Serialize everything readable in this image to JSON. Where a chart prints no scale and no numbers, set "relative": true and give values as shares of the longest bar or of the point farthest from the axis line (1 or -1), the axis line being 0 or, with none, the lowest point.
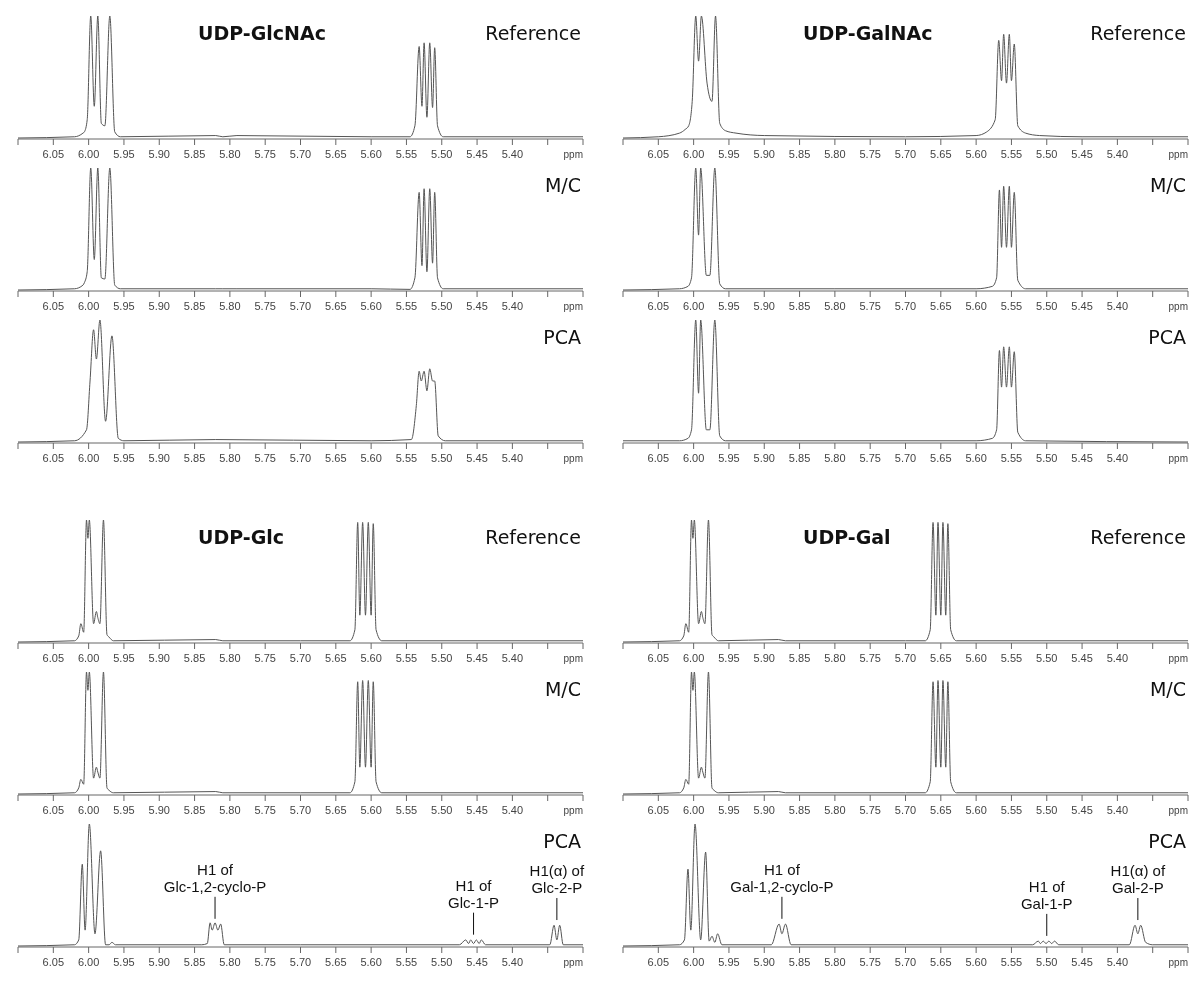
{
  "chart_data": [
    {
      "type": "line",
      "subtitle": "UDP-GlcNAc",
      "title": "Reference",
      "xlabel": "ppm",
      "relative": true,
      "color": "#555555",
      "xlim": [
        6.1,
        5.3
      ],
      "xticks": [
        {
          "value": 6.1,
          "label": null
        },
        6.05,
        "6.00",
        5.95,
        "5.90",
        5.85,
        "5.80",
        5.75,
        "5.70",
        5.65,
        "5.60",
        5.55,
        "5.50",
        5.45,
        "5.40",
        {
          "value": 5.35,
          "label": null
        },
        {
          "value": 5.3,
          "label": null
        }
      ],
      "x": [
        6.1,
        6.02,
        6.008,
        6.006,
        6.002,
        5.997,
        5.992,
        5.987,
        5.982,
        5.977,
        5.97,
        5.963,
        5.955,
        5.82,
        5.81,
        5.79,
        5.6,
        5.545,
        5.538,
        5.532,
        5.528,
        5.525,
        5.521,
        5.517,
        5.513,
        5.51,
        5.506,
        5.498,
        5.3
      ],
      "values": [
        0,
        0.01,
        0.04,
        0.05,
        0.15,
        1,
        0.26,
        1,
        0.12,
        0.1,
        1,
        0.05,
        0.01,
        0.02,
        0.01,
        0.02,
        0.01,
        0.01,
        0.1,
        0.75,
        0.26,
        0.78,
        0.17,
        0.78,
        0.25,
        0.74,
        0.1,
        0.01,
        0.01
      ]
    },
    {
      "type": "line",
      "title": "M/C",
      "xlabel": "ppm",
      "relative": true,
      "color": "#555555",
      "xlim": [
        6.1,
        5.3
      ],
      "xticks": [
        {
          "value": 6.1,
          "label": null
        },
        6.05,
        "6.00",
        5.95,
        "5.90",
        5.85,
        "5.80",
        5.75,
        "5.70",
        5.65,
        "5.60",
        5.55,
        "5.50",
        5.45,
        "5.40",
        {
          "value": 5.35,
          "label": null
        },
        {
          "value": 5.3,
          "label": null
        }
      ],
      "x": [
        6.1,
        6.02,
        6.008,
        6.006,
        6.002,
        5.997,
        5.992,
        5.987,
        5.982,
        5.977,
        5.97,
        5.963,
        5.955,
        5.82,
        5.81,
        5.79,
        5.6,
        5.545,
        5.538,
        5.532,
        5.528,
        5.525,
        5.521,
        5.517,
        5.513,
        5.51,
        5.506,
        5.498,
        5.3
      ],
      "values": [
        0,
        0.01,
        0.04,
        0.06,
        0.15,
        1,
        0.25,
        1,
        0.1,
        0.09,
        1,
        0.04,
        0.01,
        0.01,
        0.01,
        0.01,
        0.01,
        0.005,
        0.1,
        0.8,
        0.2,
        0.83,
        0.15,
        0.83,
        0.22,
        0.8,
        0.1,
        0.01,
        0.01
      ]
    },
    {
      "type": "line",
      "title": "PCA",
      "xlabel": "ppm",
      "relative": true,
      "color": "#555555",
      "xlim": [
        6.1,
        5.3
      ],
      "xticks": [
        {
          "value": 6.1,
          "label": null
        },
        6.05,
        "6.00",
        5.95,
        "5.90",
        5.85,
        "5.80",
        5.75,
        "5.70",
        5.65,
        "5.60",
        5.55,
        "5.50",
        5.45,
        "5.40",
        {
          "value": 5.35,
          "label": null
        },
        {
          "value": 5.3,
          "label": null
        }
      ],
      "x": [
        6.1,
        6.02,
        6.003,
        5.998,
        5.993,
        5.989,
        5.984,
        5.976,
        5.967,
        5.958,
        5.95,
        5.82,
        5.6,
        5.543,
        5.536,
        5.532,
        5.529,
        5.525,
        5.521,
        5.517,
        5.513,
        5.51,
        5.505,
        5.495,
        5.3
      ],
      "values": [
        0,
        0.01,
        0.1,
        0.5,
        0.92,
        0.68,
        1,
        0.17,
        0.87,
        0.03,
        0.01,
        0.02,
        0.01,
        0.02,
        0.3,
        0.58,
        0.5,
        0.58,
        0.42,
        0.6,
        0.5,
        0.5,
        0.05,
        0.01,
        0.01
      ]
    },
    {
      "type": "line",
      "subtitle": "UDP-GalNAc",
      "title": "Reference",
      "xlabel": "ppm",
      "relative": true,
      "color": "#555555",
      "xlim": [
        6.1,
        5.3
      ],
      "xticks": [
        {
          "value": 6.1,
          "label": null
        },
        6.05,
        "6.00",
        5.95,
        "5.90",
        5.85,
        "5.80",
        5.75,
        "5.70",
        5.65,
        "5.60",
        5.55,
        "5.50",
        5.45,
        "5.40",
        {
          "value": 5.35,
          "label": null
        },
        {
          "value": 5.3,
          "label": null
        }
      ],
      "x": [
        6.1,
        6.05,
        6.02,
        6.012,
        6.007,
        6.002,
        5.997,
        5.993,
        5.989,
        5.981,
        5.974,
        5.969,
        5.963,
        5.955,
        5.94,
        5.9,
        5.7,
        5.6,
        5.585,
        5.573,
        5.568,
        5.564,
        5.561,
        5.557,
        5.553,
        5.55,
        5.546,
        5.541,
        5.53,
        5.51,
        5.45,
        5.3
      ],
      "values": [
        0,
        0.01,
        0.04,
        0.07,
        0.1,
        0.3,
        1,
        0.63,
        1,
        0.45,
        0.3,
        1,
        0.12,
        0.06,
        0.04,
        0.02,
        0.01,
        0.02,
        0.05,
        0.15,
        0.8,
        0.47,
        0.85,
        0.45,
        0.85,
        0.47,
        0.77,
        0.1,
        0.04,
        0.02,
        0.01,
        0.01
      ]
    },
    {
      "type": "line",
      "title": "M/C",
      "xlabel": "ppm",
      "relative": true,
      "color": "#555555",
      "xlim": [
        6.1,
        5.3
      ],
      "xticks": [
        {
          "value": 6.1,
          "label": null
        },
        6.05,
        "6.00",
        5.95,
        "5.90",
        5.85,
        "5.80",
        5.75,
        "5.70",
        5.65,
        "5.60",
        5.55,
        "5.50",
        5.45,
        "5.40",
        {
          "value": 5.35,
          "label": null
        },
        {
          "value": 5.3,
          "label": null
        }
      ],
      "x": [
        6.1,
        6.02,
        6.008,
        6.003,
        5.997,
        5.993,
        5.99,
        5.982,
        5.977,
        5.97,
        5.963,
        5.955,
        5.8,
        5.6,
        5.577,
        5.571,
        5.567,
        5.564,
        5.561,
        5.557,
        5.553,
        5.55,
        5.546,
        5.541,
        5.53,
        5.3
      ],
      "values": [
        0,
        0.01,
        0.03,
        0.1,
        1,
        0.45,
        1,
        0.12,
        0.12,
        1,
        0.05,
        0.01,
        0.01,
        0.01,
        0.03,
        0.1,
        0.82,
        0.35,
        0.85,
        0.35,
        0.85,
        0.35,
        0.8,
        0.08,
        0.01,
        0.01
      ]
    },
    {
      "type": "line",
      "title": "PCA",
      "xlabel": "ppm",
      "relative": true,
      "color": "#555555",
      "xlim": [
        6.1,
        5.3
      ],
      "xticks": [
        {
          "value": 6.1,
          "label": null
        },
        6.05,
        "6.00",
        5.95,
        "5.90",
        5.85,
        "5.80",
        5.75,
        "5.70",
        5.65,
        "5.60",
        5.55,
        "5.50",
        5.45,
        "5.40",
        {
          "value": 5.35,
          "label": null
        },
        {
          "value": 5.3,
          "label": null
        }
      ],
      "x": [
        6.1,
        6.02,
        6.008,
        6.003,
        5.997,
        5.993,
        5.99,
        5.982,
        5.977,
        5.97,
        5.963,
        5.955,
        5.8,
        5.6,
        5.577,
        5.571,
        5.567,
        5.564,
        5.561,
        5.557,
        5.553,
        5.55,
        5.546,
        5.541,
        5.53,
        5.3
      ],
      "values": [
        0.01,
        0.01,
        0.03,
        0.1,
        1,
        0.4,
        1,
        0.1,
        0.1,
        1,
        0.05,
        0.01,
        0.01,
        0.01,
        0.03,
        0.1,
        0.75,
        0.45,
        0.78,
        0.45,
        0.78,
        0.45,
        0.74,
        0.08,
        0.01,
        0
      ]
    },
    {
      "type": "line",
      "subtitle": "UDP-Glc",
      "title": "Reference",
      "xlabel": "ppm",
      "relative": true,
      "color": "#555555",
      "xlim": [
        6.1,
        5.3
      ],
      "xticks": [
        {
          "value": 6.1,
          "label": null
        },
        6.05,
        "6.00",
        5.95,
        "5.90",
        5.85,
        "5.80",
        5.75,
        "5.70",
        5.65,
        "5.60",
        5.55,
        "5.50",
        5.45,
        "5.40",
        {
          "value": 5.35,
          "label": null
        },
        {
          "value": 5.3,
          "label": null
        }
      ],
      "x": [
        6.1,
        6.02,
        6.014,
        6.011,
        6.007,
        6.003,
        6.001,
        5.999,
        5.993,
        5.989,
        5.987,
        5.984,
        5.979,
        5.974,
        5.971,
        5.965,
        5.82,
        5.81,
        5.7,
        5.63,
        5.623,
        5.619,
        5.616,
        5.612,
        5.608,
        5.604,
        5.6,
        5.597,
        5.593,
        5.585,
        5.45,
        5.3
      ],
      "values": [
        0,
        0.01,
        0.05,
        0.15,
        0.08,
        1,
        0.85,
        1,
        0.15,
        0.25,
        0.2,
        0.15,
        1,
        0.06,
        0.04,
        0.01,
        0.02,
        0.01,
        0.01,
        0.01,
        0.1,
        0.98,
        0.22,
        0.98,
        0.22,
        0.98,
        0.22,
        0.97,
        0.1,
        0.01,
        0.01,
        0.01
      ]
    },
    {
      "type": "line",
      "title": "M/C",
      "xlabel": "ppm",
      "relative": true,
      "color": "#555555",
      "xlim": [
        6.1,
        5.3
      ],
      "xticks": [
        {
          "value": 6.1,
          "label": null
        },
        6.05,
        "6.00",
        5.95,
        "5.90",
        5.85,
        "5.80",
        5.75,
        "5.70",
        5.65,
        "5.60",
        5.55,
        "5.50",
        5.45,
        "5.40",
        {
          "value": 5.35,
          "label": null
        },
        {
          "value": 5.3,
          "label": null
        }
      ],
      "x": [
        6.1,
        6.02,
        6.014,
        6.011,
        6.007,
        6.003,
        6.001,
        5.999,
        5.993,
        5.989,
        5.987,
        5.984,
        5.979,
        5.974,
        5.971,
        5.965,
        5.82,
        5.81,
        5.7,
        5.63,
        5.623,
        5.619,
        5.616,
        5.612,
        5.608,
        5.604,
        5.6,
        5.597,
        5.593,
        5.585,
        5.45,
        5.3
      ],
      "values": [
        0,
        0.01,
        0.05,
        0.12,
        0.08,
        1,
        0.85,
        1,
        0.13,
        0.22,
        0.18,
        0.13,
        1,
        0.05,
        0.03,
        0.01,
        0.02,
        0.01,
        0.01,
        0.01,
        0.1,
        0.92,
        0.22,
        0.93,
        0.22,
        0.93,
        0.22,
        0.92,
        0.1,
        0.01,
        0.01,
        0.01
      ]
    },
    {
      "type": "line",
      "title": "PCA",
      "xlabel": "ppm",
      "relative": true,
      "color": "#555555",
      "xlim": [
        6.1,
        5.3
      ],
      "xticks": [
        {
          "value": 6.1,
          "label": null
        },
        6.05,
        "6.00",
        5.95,
        "5.90",
        5.85,
        "5.80",
        5.75,
        "5.70",
        5.65,
        "5.60",
        5.55,
        "5.50",
        5.45,
        "5.40",
        {
          "value": 5.35,
          "label": null
        },
        {
          "value": 5.3,
          "label": null
        }
      ],
      "x": [
        6.1,
        6.02,
        6.014,
        6.009,
        6.005,
        5.999,
        5.991,
        5.983,
        5.976,
        5.971,
        5.967,
        5.962,
        5.84,
        5.832,
        5.828,
        5.825,
        5.821,
        5.817,
        5.813,
        5.808,
        5.7,
        5.475,
        5.466,
        5.462,
        5.459,
        5.455,
        5.451,
        5.447,
        5.444,
        5.438,
        5.4,
        5.347,
        5.341,
        5.337,
        5.333,
        5.328,
        5.3
      ],
      "values": [
        0,
        0.01,
        0.05,
        0.67,
        0.13,
        1,
        0.1,
        0.78,
        0.01,
        0.01,
        0.03,
        0.01,
        0.01,
        0.02,
        0.19,
        0.13,
        0.19,
        0.13,
        0.18,
        0.01,
        0.01,
        0.01,
        0.05,
        0.02,
        0.05,
        0.02,
        0.05,
        0.02,
        0.05,
        0.01,
        0.01,
        0.01,
        0.17,
        0.05,
        0.17,
        0.01,
        0.01
      ],
      "annotations": [
        {
          "text": "H1 of\nGlc-1,2-cyclo-P",
          "x": 5.821,
          "y": 0.19
        },
        {
          "text": "H1 of\nGlc-1-P",
          "x": 5.455,
          "y": 0.06
        },
        {
          "text": "H1(α) of\nGlc-2-P",
          "x": 5.337,
          "y": 0.18
        }
      ]
    },
    {
      "type": "line",
      "subtitle": "UDP-Gal",
      "title": "Reference",
      "xlabel": "ppm",
      "relative": true,
      "color": "#555555",
      "xlim": [
        6.1,
        5.3
      ],
      "xticks": [
        {
          "value": 6.1,
          "label": null
        },
        6.05,
        "6.00",
        5.95,
        "5.90",
        5.85,
        "5.80",
        5.75,
        "5.70",
        5.65,
        "5.60",
        5.55,
        "5.50",
        5.45,
        "5.40",
        {
          "value": 5.35,
          "label": null
        },
        {
          "value": 5.3,
          "label": null
        }
      ],
      "x": [
        6.1,
        6.02,
        6.014,
        6.011,
        6.007,
        6.003,
        6.001,
        5.999,
        5.993,
        5.989,
        5.987,
        5.984,
        5.979,
        5.974,
        5.971,
        5.965,
        5.88,
        5.87,
        5.7,
        5.672,
        5.665,
        5.661,
        5.657,
        5.654,
        5.65,
        5.647,
        5.643,
        5.64,
        5.636,
        5.628,
        5.45,
        5.3
      ],
      "values": [
        0,
        0.01,
        0.05,
        0.15,
        0.08,
        1,
        0.85,
        1,
        0.15,
        0.25,
        0.2,
        0.15,
        1,
        0.06,
        0.04,
        0.01,
        0.02,
        0.01,
        0.01,
        0.01,
        0.1,
        0.98,
        0.22,
        0.98,
        0.22,
        0.98,
        0.22,
        0.97,
        0.1,
        0.01,
        0.01,
        0.01
      ]
    },
    {
      "type": "line",
      "title": "M/C",
      "xlabel": "ppm",
      "relative": true,
      "color": "#555555",
      "xlim": [
        6.1,
        5.3
      ],
      "xticks": [
        {
          "value": 6.1,
          "label": null
        },
        6.05,
        "6.00",
        5.95,
        "5.90",
        5.85,
        "5.80",
        5.75,
        "5.70",
        5.65,
        "5.60",
        5.55,
        "5.50",
        5.45,
        "5.40",
        {
          "value": 5.35,
          "label": null
        },
        {
          "value": 5.3,
          "label": null
        }
      ],
      "x": [
        6.1,
        6.02,
        6.014,
        6.011,
        6.007,
        6.003,
        6.001,
        5.999,
        5.993,
        5.989,
        5.987,
        5.984,
        5.979,
        5.974,
        5.971,
        5.965,
        5.88,
        5.87,
        5.7,
        5.672,
        5.665,
        5.661,
        5.657,
        5.654,
        5.65,
        5.647,
        5.643,
        5.64,
        5.636,
        5.628,
        5.45,
        5.3
      ],
      "values": [
        0,
        0.01,
        0.05,
        0.12,
        0.08,
        1,
        0.85,
        1,
        0.13,
        0.22,
        0.18,
        0.13,
        1,
        0.05,
        0.03,
        0.01,
        0.02,
        0.01,
        0.01,
        0.01,
        0.1,
        0.92,
        0.22,
        0.93,
        0.22,
        0.93,
        0.22,
        0.92,
        0.1,
        0.01,
        0.01,
        0.01
      ]
    },
    {
      "type": "line",
      "title": "PCA",
      "xlabel": "ppm",
      "relative": true,
      "color": "#555555",
      "xlim": [
        6.1,
        5.3
      ],
      "xticks": [
        {
          "value": 6.1,
          "label": null
        },
        6.05,
        "6.00",
        5.95,
        "5.90",
        5.85,
        "5.80",
        5.75,
        "5.70",
        5.65,
        "5.60",
        5.55,
        "5.50",
        5.45,
        "5.40",
        {
          "value": 5.35,
          "label": null
        },
        {
          "value": 5.3,
          "label": null
        }
      ],
      "x": [
        6.1,
        6.02,
        6.013,
        6.008,
        6.004,
        5.998,
        5.99,
        5.983,
        5.978,
        5.974,
        5.97,
        5.966,
        5.96,
        5.89,
        5.879,
        5.875,
        5.87,
        5.862,
        5.7,
        5.52,
        5.512,
        5.509,
        5.505,
        5.501,
        5.497,
        5.493,
        5.489,
        5.483,
        5.4,
        5.383,
        5.375,
        5.371,
        5.367,
        5.36,
        5.35,
        5.3
      ],
      "values": [
        0,
        0.01,
        0.05,
        0.63,
        0.13,
        1,
        0.05,
        0.77,
        0.04,
        0.08,
        0.03,
        0.1,
        0.01,
        0.01,
        0.18,
        0.1,
        0.18,
        0.01,
        0.01,
        0.01,
        0.04,
        0.02,
        0.04,
        0.02,
        0.04,
        0.02,
        0.04,
        0.01,
        0.01,
        0.01,
        0.17,
        0.1,
        0.17,
        0.03,
        0.01,
        0.01
      ],
      "annotations": [
        {
          "text": "H1 of\nGal-1,2-cyclo-P",
          "x": 5.875,
          "y": 0.19
        },
        {
          "text": "H1 of\nGal-1-P",
          "x": 5.5,
          "y": 0.05
        },
        {
          "text": "H1(α) of\nGal-2-P",
          "x": 5.371,
          "y": 0.18
        }
      ]
    }
  ]
}
